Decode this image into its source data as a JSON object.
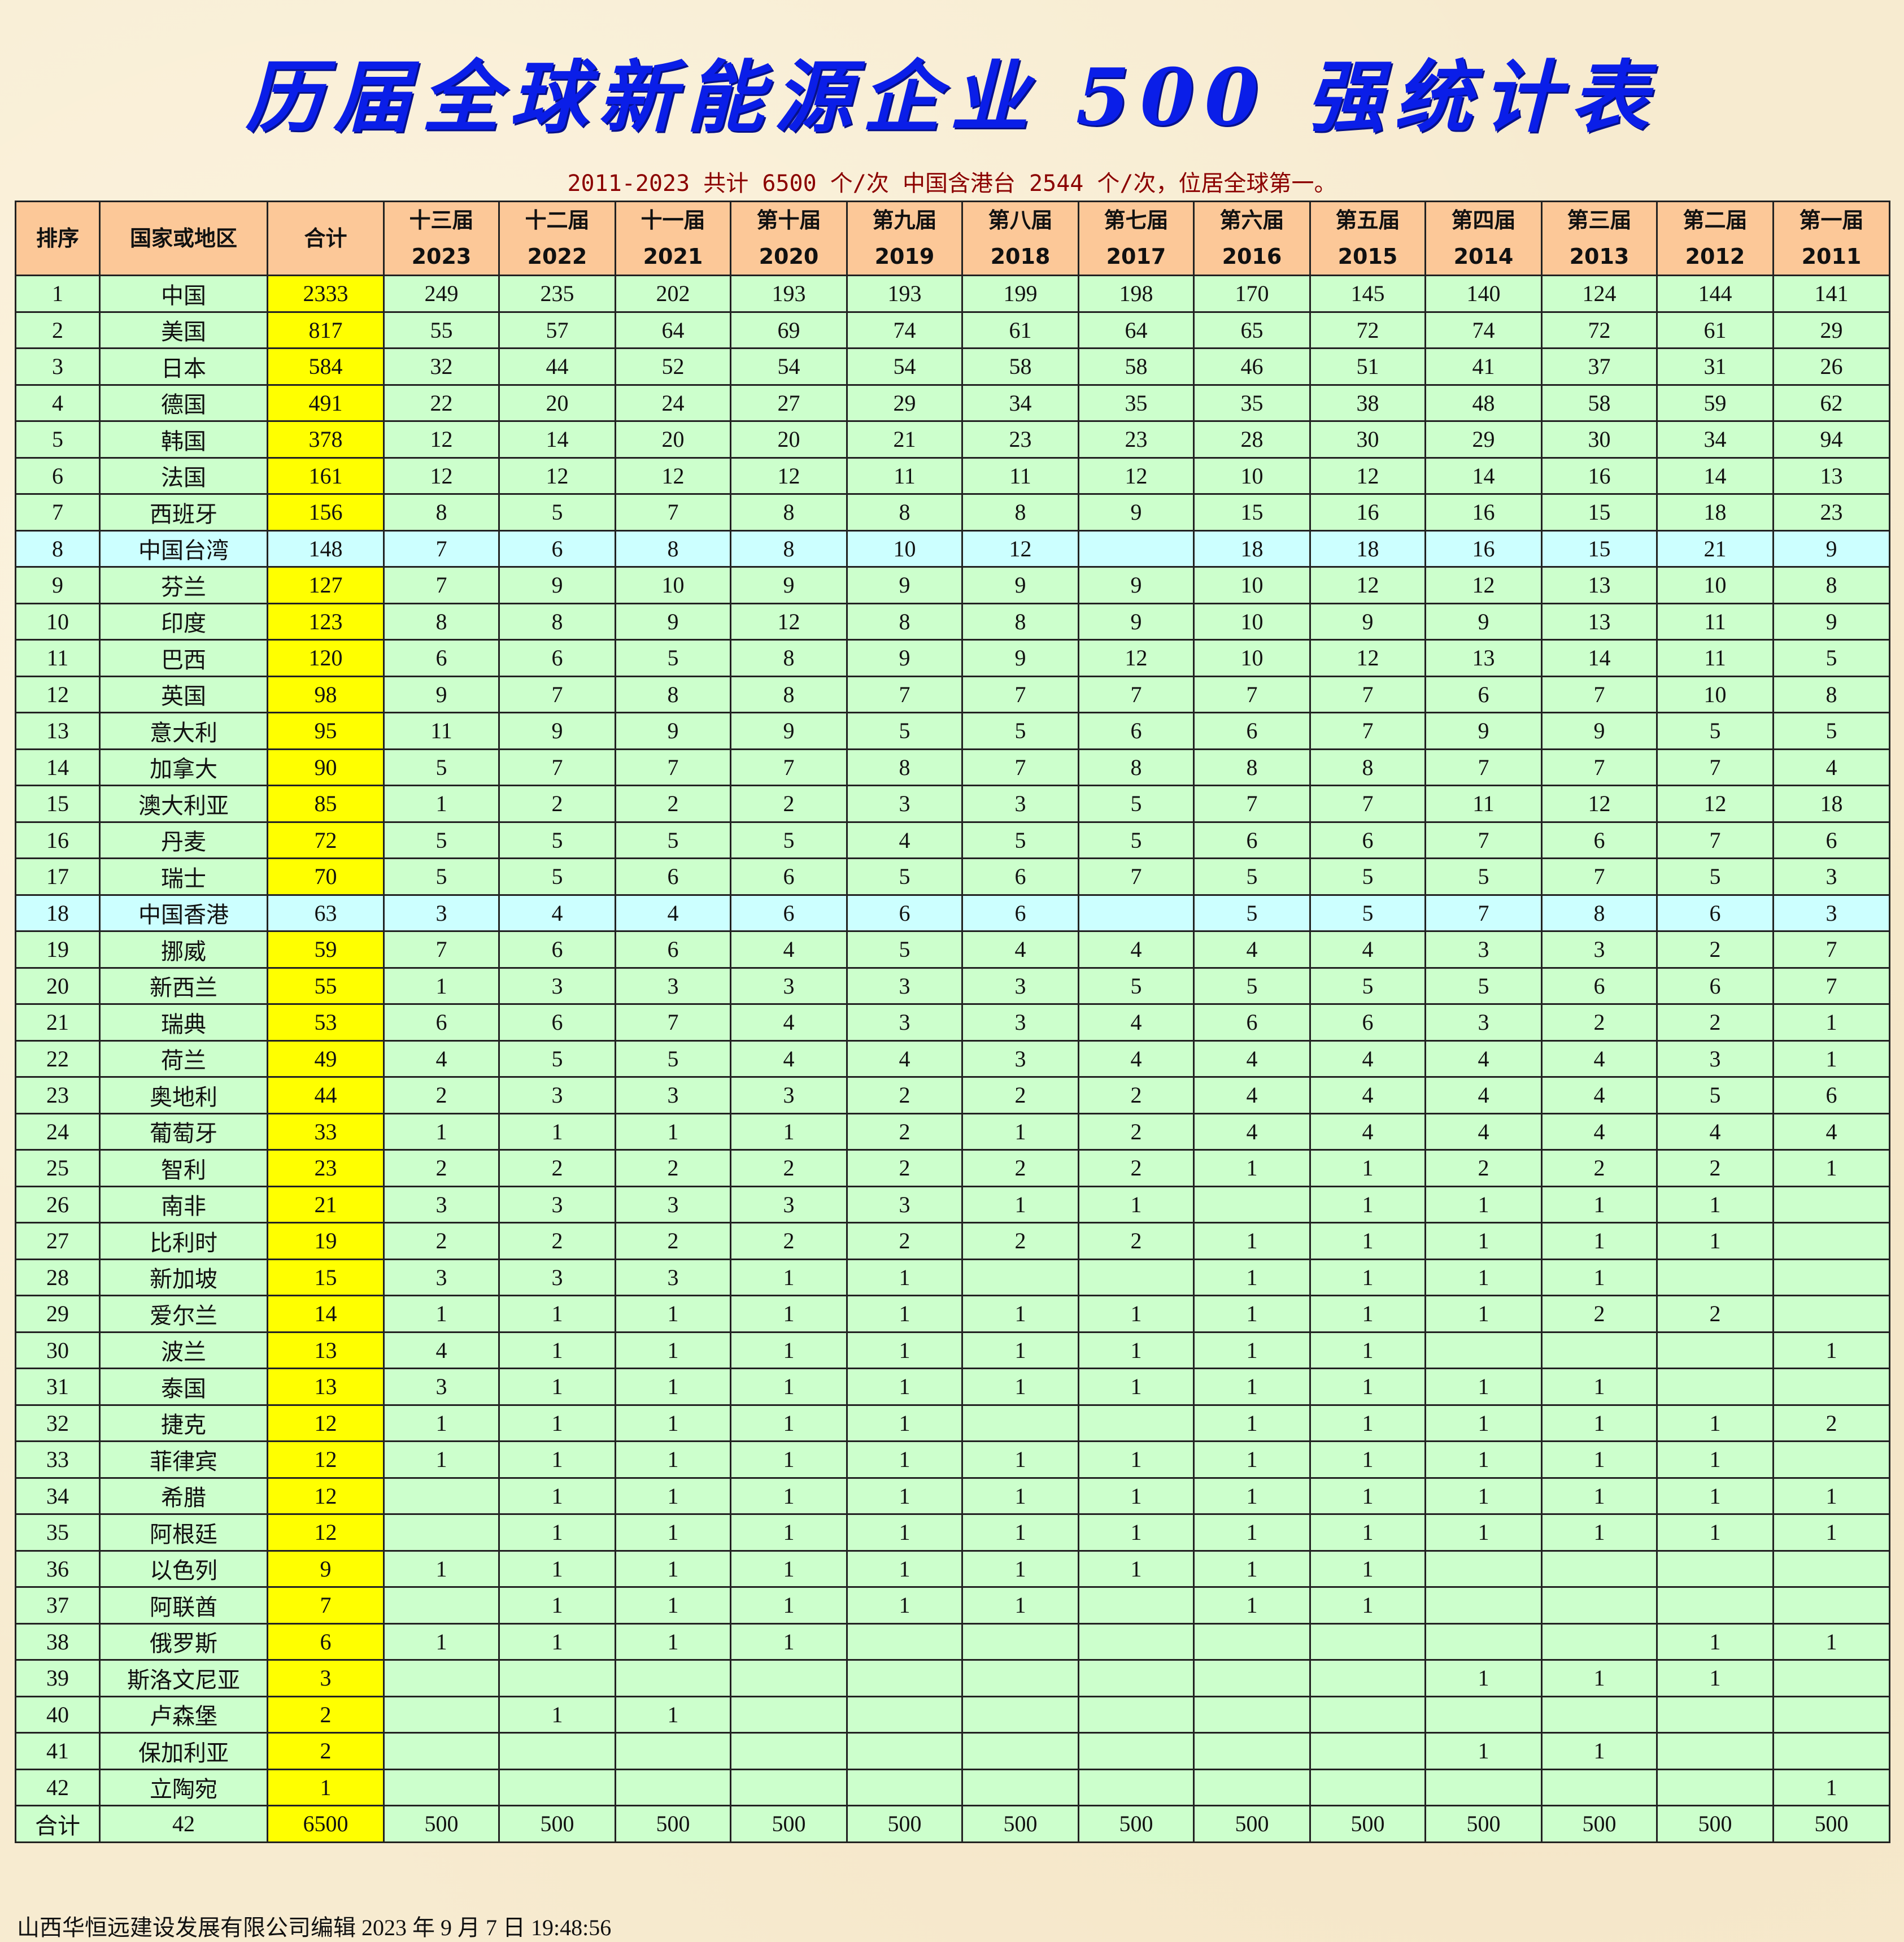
{
  "title": "历届全球新能源企业 500 强统计表",
  "subtitle": "2011-2023 共计 6500 个/次  中国含港台 2544 个/次，位居全球第一。",
  "colors": {
    "title": "#0a1ee8",
    "subtitle": "#8b0000",
    "header_bg": "#fcc898",
    "row_bg": "#ccffcc",
    "total_col_bg": "#ffff00",
    "region_row_bg": "#ccffff"
  },
  "headers": {
    "rank": "排序",
    "country": "国家或地区",
    "total": "合计",
    "editions": [
      {
        "name": "十三届",
        "year": "2023"
      },
      {
        "name": "十二届",
        "year": "2022"
      },
      {
        "name": "十一届",
        "year": "2021"
      },
      {
        "name": "第十届",
        "year": "2020"
      },
      {
        "name": "第九届",
        "year": "2019"
      },
      {
        "name": "第八届",
        "year": "2018"
      },
      {
        "name": "第七届",
        "year": "2017"
      },
      {
        "name": "第六届",
        "year": "2016"
      },
      {
        "name": "第五届",
        "year": "2015"
      },
      {
        "name": "第四届",
        "year": "2014"
      },
      {
        "name": "第三届",
        "year": "2013"
      },
      {
        "name": "第二届",
        "year": "2012"
      },
      {
        "name": "第一届",
        "year": "2011"
      }
    ]
  },
  "rows": [
    {
      "rank": "1",
      "country": "中国",
      "total": "2333",
      "values": [
        "249",
        "235",
        "202",
        "193",
        "193",
        "199",
        "198",
        "170",
        "145",
        "140",
        "124",
        "144",
        "141"
      ]
    },
    {
      "rank": "2",
      "country": "美国",
      "total": "817",
      "values": [
        "55",
        "57",
        "64",
        "69",
        "74",
        "61",
        "64",
        "65",
        "72",
        "74",
        "72",
        "61",
        "29"
      ]
    },
    {
      "rank": "3",
      "country": "日本",
      "total": "584",
      "values": [
        "32",
        "44",
        "52",
        "54",
        "54",
        "58",
        "58",
        "46",
        "51",
        "41",
        "37",
        "31",
        "26"
      ]
    },
    {
      "rank": "4",
      "country": "德国",
      "total": "491",
      "values": [
        "22",
        "20",
        "24",
        "27",
        "29",
        "34",
        "35",
        "35",
        "38",
        "48",
        "58",
        "59",
        "62"
      ]
    },
    {
      "rank": "5",
      "country": "韩国",
      "total": "378",
      "values": [
        "12",
        "14",
        "20",
        "20",
        "21",
        "23",
        "23",
        "28",
        "30",
        "29",
        "30",
        "34",
        "94"
      ]
    },
    {
      "rank": "6",
      "country": "法国",
      "total": "161",
      "values": [
        "12",
        "12",
        "12",
        "12",
        "11",
        "11",
        "12",
        "10",
        "12",
        "14",
        "16",
        "14",
        "13"
      ]
    },
    {
      "rank": "7",
      "country": "西班牙",
      "total": "156",
      "values": [
        "8",
        "5",
        "7",
        "8",
        "8",
        "8",
        "9",
        "15",
        "16",
        "16",
        "15",
        "18",
        "23"
      ]
    },
    {
      "rank": "8",
      "country": "中国台湾",
      "total": "148",
      "region": true,
      "values": [
        "7",
        "6",
        "8",
        "8",
        "10",
        "12",
        "",
        "18",
        "18",
        "16",
        "15",
        "21",
        "9"
      ]
    },
    {
      "rank": "9",
      "country": "芬兰",
      "total": "127",
      "values": [
        "7",
        "9",
        "10",
        "9",
        "9",
        "9",
        "9",
        "10",
        "12",
        "12",
        "13",
        "10",
        "8"
      ]
    },
    {
      "rank": "10",
      "country": "印度",
      "total": "123",
      "values": [
        "8",
        "8",
        "9",
        "12",
        "8",
        "8",
        "9",
        "10",
        "9",
        "9",
        "13",
        "11",
        "9"
      ]
    },
    {
      "rank": "11",
      "country": "巴西",
      "total": "120",
      "values": [
        "6",
        "6",
        "5",
        "8",
        "9",
        "9",
        "12",
        "10",
        "12",
        "13",
        "14",
        "11",
        "5"
      ]
    },
    {
      "rank": "12",
      "country": "英国",
      "total": "98",
      "values": [
        "9",
        "7",
        "8",
        "8",
        "7",
        "7",
        "7",
        "7",
        "7",
        "6",
        "7",
        "10",
        "8"
      ]
    },
    {
      "rank": "13",
      "country": "意大利",
      "total": "95",
      "values": [
        "11",
        "9",
        "9",
        "9",
        "5",
        "5",
        "6",
        "6",
        "7",
        "9",
        "9",
        "5",
        "5"
      ]
    },
    {
      "rank": "14",
      "country": "加拿大",
      "total": "90",
      "values": [
        "5",
        "7",
        "7",
        "7",
        "8",
        "7",
        "8",
        "8",
        "8",
        "7",
        "7",
        "7",
        "4"
      ]
    },
    {
      "rank": "15",
      "country": "澳大利亚",
      "total": "85",
      "values": [
        "1",
        "2",
        "2",
        "2",
        "3",
        "3",
        "5",
        "7",
        "7",
        "11",
        "12",
        "12",
        "18"
      ]
    },
    {
      "rank": "16",
      "country": "丹麦",
      "total": "72",
      "values": [
        "5",
        "5",
        "5",
        "5",
        "4",
        "5",
        "5",
        "6",
        "6",
        "7",
        "6",
        "7",
        "6"
      ]
    },
    {
      "rank": "17",
      "country": "瑞士",
      "total": "70",
      "values": [
        "5",
        "5",
        "6",
        "6",
        "5",
        "6",
        "7",
        "5",
        "5",
        "5",
        "7",
        "5",
        "3"
      ]
    },
    {
      "rank": "18",
      "country": "中国香港",
      "total": "63",
      "region": true,
      "values": [
        "3",
        "4",
        "4",
        "6",
        "6",
        "6",
        "",
        "5",
        "5",
        "7",
        "8",
        "6",
        "3"
      ]
    },
    {
      "rank": "19",
      "country": "挪威",
      "total": "59",
      "values": [
        "7",
        "6",
        "6",
        "4",
        "5",
        "4",
        "4",
        "4",
        "4",
        "3",
        "3",
        "2",
        "7"
      ]
    },
    {
      "rank": "20",
      "country": "新西兰",
      "total": "55",
      "values": [
        "1",
        "3",
        "3",
        "3",
        "3",
        "3",
        "5",
        "5",
        "5",
        "5",
        "6",
        "6",
        "7"
      ]
    },
    {
      "rank": "21",
      "country": "瑞典",
      "total": "53",
      "values": [
        "6",
        "6",
        "7",
        "4",
        "3",
        "3",
        "4",
        "6",
        "6",
        "3",
        "2",
        "2",
        "1"
      ]
    },
    {
      "rank": "22",
      "country": "荷兰",
      "total": "49",
      "values": [
        "4",
        "5",
        "5",
        "4",
        "4",
        "3",
        "4",
        "4",
        "4",
        "4",
        "4",
        "3",
        "1"
      ]
    },
    {
      "rank": "23",
      "country": "奥地利",
      "total": "44",
      "values": [
        "2",
        "3",
        "3",
        "3",
        "2",
        "2",
        "2",
        "4",
        "4",
        "4",
        "4",
        "5",
        "6"
      ]
    },
    {
      "rank": "24",
      "country": "葡萄牙",
      "total": "33",
      "values": [
        "1",
        "1",
        "1",
        "1",
        "2",
        "1",
        "2",
        "4",
        "4",
        "4",
        "4",
        "4",
        "4"
      ]
    },
    {
      "rank": "25",
      "country": "智利",
      "total": "23",
      "values": [
        "2",
        "2",
        "2",
        "2",
        "2",
        "2",
        "2",
        "1",
        "1",
        "2",
        "2",
        "2",
        "1"
      ]
    },
    {
      "rank": "26",
      "country": "南非",
      "total": "21",
      "values": [
        "3",
        "3",
        "3",
        "3",
        "3",
        "1",
        "1",
        "",
        "1",
        "1",
        "1",
        "1",
        ""
      ]
    },
    {
      "rank": "27",
      "country": "比利时",
      "total": "19",
      "values": [
        "2",
        "2",
        "2",
        "2",
        "2",
        "2",
        "2",
        "1",
        "1",
        "1",
        "1",
        "1",
        ""
      ]
    },
    {
      "rank": "28",
      "country": "新加坡",
      "total": "15",
      "values": [
        "3",
        "3",
        "3",
        "1",
        "1",
        "",
        "",
        "1",
        "1",
        "1",
        "1",
        "",
        ""
      ]
    },
    {
      "rank": "29",
      "country": "爱尔兰",
      "total": "14",
      "values": [
        "1",
        "1",
        "1",
        "1",
        "1",
        "1",
        "1",
        "1",
        "1",
        "1",
        "2",
        "2",
        ""
      ]
    },
    {
      "rank": "30",
      "country": "波兰",
      "total": "13",
      "values": [
        "4",
        "1",
        "1",
        "1",
        "1",
        "1",
        "1",
        "1",
        "1",
        "",
        "",
        "",
        "1"
      ]
    },
    {
      "rank": "31",
      "country": "泰国",
      "total": "13",
      "values": [
        "3",
        "1",
        "1",
        "1",
        "1",
        "1",
        "1",
        "1",
        "1",
        "1",
        "1",
        "",
        ""
      ]
    },
    {
      "rank": "32",
      "country": "捷克",
      "total": "12",
      "values": [
        "1",
        "1",
        "1",
        "1",
        "1",
        "",
        "",
        "1",
        "1",
        "1",
        "1",
        "1",
        "2"
      ]
    },
    {
      "rank": "33",
      "country": "菲律宾",
      "total": "12",
      "values": [
        "1",
        "1",
        "1",
        "1",
        "1",
        "1",
        "1",
        "1",
        "1",
        "1",
        "1",
        "1",
        ""
      ]
    },
    {
      "rank": "34",
      "country": "希腊",
      "total": "12",
      "values": [
        "",
        "1",
        "1",
        "1",
        "1",
        "1",
        "1",
        "1",
        "1",
        "1",
        "1",
        "1",
        "1"
      ]
    },
    {
      "rank": "35",
      "country": "阿根廷",
      "total": "12",
      "values": [
        "",
        "1",
        "1",
        "1",
        "1",
        "1",
        "1",
        "1",
        "1",
        "1",
        "1",
        "1",
        "1"
      ]
    },
    {
      "rank": "36",
      "country": "以色列",
      "total": "9",
      "values": [
        "1",
        "1",
        "1",
        "1",
        "1",
        "1",
        "1",
        "1",
        "1",
        "",
        "",
        "",
        ""
      ]
    },
    {
      "rank": "37",
      "country": "阿联酋",
      "total": "7",
      "values": [
        "",
        "1",
        "1",
        "1",
        "1",
        "1",
        "",
        "1",
        "1",
        "",
        "",
        "",
        ""
      ]
    },
    {
      "rank": "38",
      "country": "俄罗斯",
      "total": "6",
      "values": [
        "1",
        "1",
        "1",
        "1",
        "",
        "",
        "",
        "",
        "",
        "",
        "",
        "1",
        "1"
      ]
    },
    {
      "rank": "39",
      "country": "斯洛文尼亚",
      "total": "3",
      "values": [
        "",
        "",
        "",
        "",
        "",
        "",
        "",
        "",
        "",
        "1",
        "1",
        "1",
        ""
      ]
    },
    {
      "rank": "40",
      "country": "卢森堡",
      "total": "2",
      "values": [
        "",
        "1",
        "1",
        "",
        "",
        "",
        "",
        "",
        "",
        "",
        "",
        "",
        ""
      ]
    },
    {
      "rank": "41",
      "country": "保加利亚",
      "total": "2",
      "values": [
        "",
        "",
        "",
        "",
        "",
        "",
        "",
        "",
        "",
        "1",
        "1",
        "",
        ""
      ]
    },
    {
      "rank": "42",
      "country": "立陶宛",
      "total": "1",
      "values": [
        "",
        "",
        "",
        "",
        "",
        "",
        "",
        "",
        "",
        "",
        "",
        "",
        "1"
      ]
    }
  ],
  "total_row": {
    "rank": "合计",
    "country": "42",
    "total": "6500",
    "values": [
      "500",
      "500",
      "500",
      "500",
      "500",
      "500",
      "500",
      "500",
      "500",
      "500",
      "500",
      "500",
      "500"
    ]
  },
  "footer": "山西华恒远建设发展有限公司编辑  2023 年 9 月 7 日 19:48:56"
}
